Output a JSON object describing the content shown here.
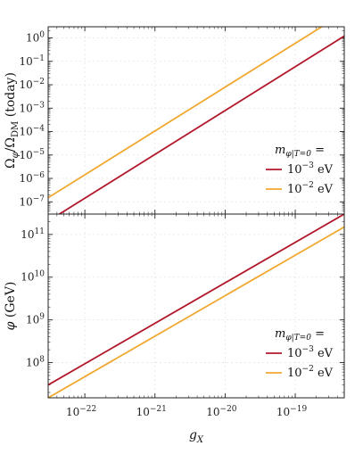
{
  "chart_data": [
    {
      "type": "line",
      "panel": "top",
      "xscale": "log",
      "yscale": "log",
      "xlim": [
        3e-23,
        5e-19
      ],
      "ylim": [
        3e-08,
        3
      ],
      "ylabel": "Ω_φ/Ω_DM (today)",
      "ylabel_parts": {
        "omega": "Ω",
        "phi_sub": "φ",
        "slash": "/",
        "dm_sub": "DM",
        "suffix": " (today)"
      },
      "yticks": [
        {
          "value": 1,
          "label": "10",
          "exp": "0"
        },
        {
          "value": 0.1,
          "label": "10",
          "exp": "−1"
        },
        {
          "value": 0.01,
          "label": "10",
          "exp": "−2"
        },
        {
          "value": 0.001,
          "label": "10",
          "exp": "−3"
        },
        {
          "value": 0.0001,
          "label": "10",
          "exp": "−4"
        },
        {
          "value": 1e-05,
          "label": "10",
          "exp": "−5"
        },
        {
          "value": 1e-06,
          "label": "10",
          "exp": "−6"
        },
        {
          "value": 1e-07,
          "label": "10",
          "exp": "−7"
        }
      ],
      "grid": true,
      "legend_position": "lower-right",
      "legend_title": {
        "m": "m",
        "phi": "φ",
        "sub": "|T=0",
        "eq": " ="
      },
      "series": [
        {
          "name": "10^-3 eV",
          "label_base": "10",
          "label_exp": "−3",
          "label_unit": " eV",
          "color": "#b2182b",
          "x": [
            3e-23,
            5e-19
          ],
          "y": [
            1.5e-08,
            1.2
          ]
        },
        {
          "name": "10^-2 eV",
          "label_base": "10",
          "label_exp": "−2",
          "label_unit": " eV",
          "color": "#f0a830",
          "x": [
            3e-23,
            5e-19
          ],
          "y": [
            1.5e-07,
            12
          ]
        }
      ]
    },
    {
      "type": "line",
      "panel": "bottom",
      "xscale": "log",
      "yscale": "log",
      "xlim": [
        3e-23,
        5e-19
      ],
      "ylim": [
        15000000.0,
        300000000000.0
      ],
      "xlabel": "g_X",
      "xlabel_parts": {
        "g": "g",
        "sub": "X"
      },
      "ylabel": "φ (GeV)",
      "ylabel_parts": {
        "phi": "φ",
        "suffix": " (GeV)"
      },
      "xticks": [
        {
          "value": 1e-22,
          "label": "10",
          "exp": "−22"
        },
        {
          "value": 1e-21,
          "label": "10",
          "exp": "−21"
        },
        {
          "value": 1e-20,
          "label": "10",
          "exp": "−20"
        },
        {
          "value": 1e-19,
          "label": "10",
          "exp": "−19"
        }
      ],
      "yticks": [
        {
          "value": 100000000000.0,
          "label": "10",
          "exp": "11"
        },
        {
          "value": 10000000000.0,
          "label": "10",
          "exp": "10"
        },
        {
          "value": 1000000000.0,
          "label": "10",
          "exp": "9"
        },
        {
          "value": 100000000.0,
          "label": "10",
          "exp": "8"
        }
      ],
      "grid": true,
      "legend_position": "lower-right",
      "legend_title": {
        "m": "m",
        "phi": "φ",
        "sub": "|T=0",
        "eq": " ="
      },
      "series": [
        {
          "name": "10^-3 eV",
          "label_base": "10",
          "label_exp": "−3",
          "label_unit": " eV",
          "color": "#b2182b",
          "x": [
            3e-23,
            5e-19
          ],
          "y": [
            30000000.0,
            300000000000.0
          ]
        },
        {
          "name": "10^-2 eV",
          "label_base": "10",
          "label_exp": "−2",
          "label_unit": " eV",
          "color": "#f0a830",
          "x": [
            3e-23,
            5e-19
          ],
          "y": [
            15000000.0,
            150000000000.0
          ]
        }
      ]
    }
  ]
}
